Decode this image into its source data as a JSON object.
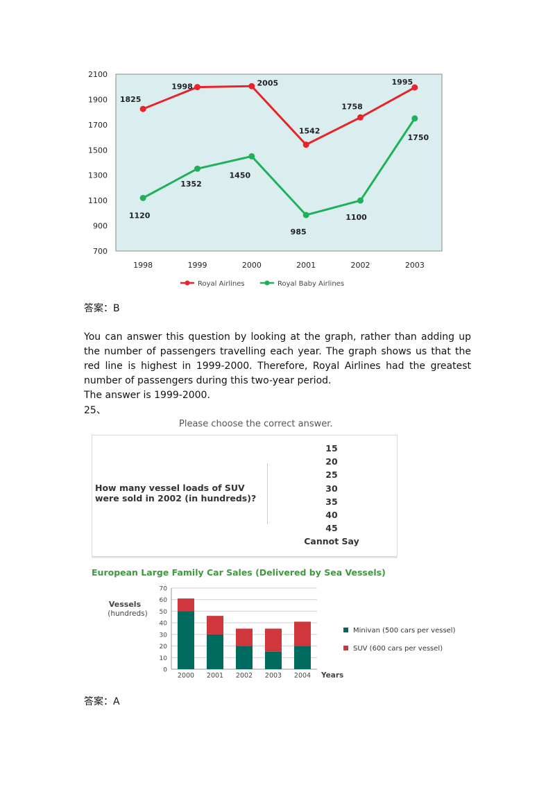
{
  "chart_data": [
    {
      "type": "line",
      "title": "",
      "categories": [
        "1998",
        "1999",
        "2000",
        "2001",
        "2002",
        "2003"
      ],
      "ylim": [
        700,
        2100
      ],
      "yticks": [
        700,
        900,
        1100,
        1300,
        1500,
        1700,
        1900,
        2100
      ],
      "grid": false,
      "legend_position": "bottom-center",
      "series": [
        {
          "name": "Royal Airlines",
          "color": "#e8232a",
          "values": [
            1825,
            1998,
            2005,
            1542,
            1758,
            1995
          ]
        },
        {
          "name": "Royal Baby Airlines",
          "color": "#1fb05a",
          "values": [
            1120,
            1352,
            1450,
            985,
            1100,
            1750
          ]
        }
      ]
    },
    {
      "type": "bar",
      "stacked": true,
      "title": "European Large Family Car Sales (Delivered by Sea Vessels)",
      "xlabel": "Years",
      "ylabel": "Vessels",
      "ylabel_unit": "(hundreds)",
      "categories": [
        "2000",
        "2001",
        "2002",
        "2003",
        "2004"
      ],
      "ylim": [
        0,
        70
      ],
      "yticks": [
        0,
        10,
        20,
        30,
        40,
        50,
        60,
        70
      ],
      "grid": true,
      "legend_position": "right",
      "series": [
        {
          "name": "Minivan (500 cars per vessel)",
          "color": "#006a5e",
          "values": [
            50,
            30,
            20,
            15,
            20
          ]
        },
        {
          "name": "SUV (600 cars per vessel)",
          "color": "#d0373d",
          "values": [
            11,
            16,
            15,
            20,
            21
          ]
        }
      ]
    }
  ],
  "answer1": "答案：B",
  "explanation": [
    "You can answer this question by looking at the graph, rather than adding up the number of passengers travelling each year. The graph shows us that the red line is highest in 1999-2000. Therefore, Royal Airlines had the greatest number of passengers during this two-year period.",
    "The answer is 1999-2000."
  ],
  "question_number": "25、",
  "question": {
    "prompt": "Please choose the correct answer.",
    "text": "How many vessel loads of SUV were sold in 2002 (in hundreds)?",
    "options": [
      "15",
      "20",
      "25",
      "30",
      "35",
      "40",
      "45",
      "Cannot Say"
    ]
  },
  "answer2": "答案：A"
}
